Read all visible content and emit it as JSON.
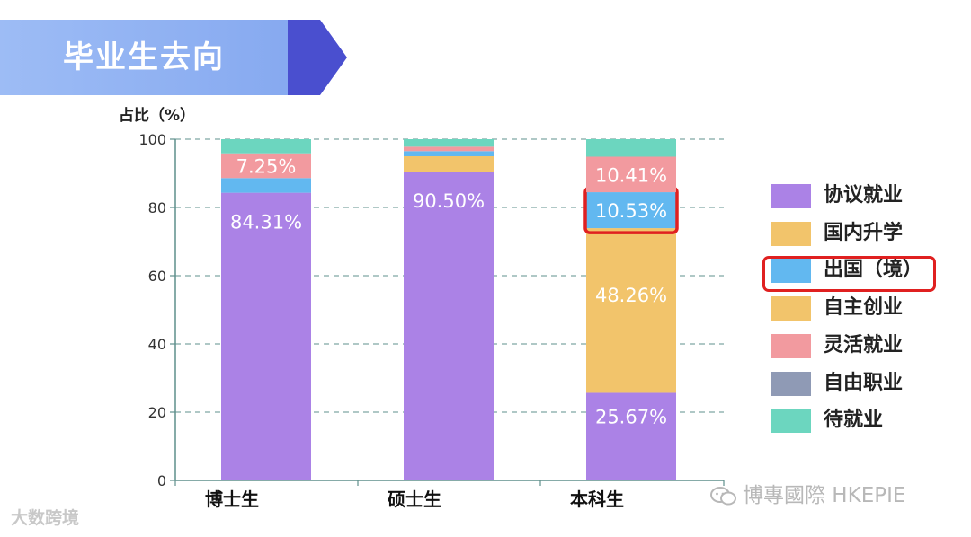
{
  "header": {
    "title": "毕业生去向"
  },
  "colors": {
    "banner": "#8fb0f2",
    "banner_arrow": "#4a4fcf",
    "highlight": "#e02020"
  },
  "chart_data": {
    "type": "bar",
    "stacked": true,
    "ylabel": "占比（%）",
    "ylim": [
      0,
      100
    ],
    "yticks": [
      "0",
      "20",
      "40",
      "60",
      "80",
      "100"
    ],
    "categories": [
      "博士生",
      "硕士生",
      "本科生"
    ],
    "grid": "horizontal-dashed",
    "legend_position": "right",
    "series": [
      {
        "name": "协议就业",
        "color": "#ab82e6",
        "values": [
          84.31,
          90.5,
          25.67
        ],
        "labels": [
          "84.31%",
          "90.50%",
          "25.67%"
        ]
      },
      {
        "name": "国内升学",
        "color": "#f2c46b",
        "values": [
          0,
          4.5,
          48.26
        ],
        "labels": [
          "",
          "",
          "48.26%"
        ]
      },
      {
        "name": "出国（境）",
        "color": "#62b8f0",
        "values": [
          4.3,
          1.5,
          10.53
        ],
        "labels": [
          "",
          "",
          "10.53%"
        ]
      },
      {
        "name": "自主创业",
        "color": "#f2c46b",
        "values": [
          0,
          0,
          0
        ],
        "labels": [
          "",
          "",
          ""
        ]
      },
      {
        "name": "灵活就业",
        "color": "#f29a9f",
        "values": [
          7.25,
          1.3,
          10.41
        ],
        "labels": [
          "7.25%",
          "",
          "10.41%"
        ]
      },
      {
        "name": "自由职业",
        "color": "#8f9ab5",
        "values": [
          0,
          0,
          0
        ],
        "labels": [
          "",
          "",
          ""
        ]
      },
      {
        "name": "待就业",
        "color": "#6cd6bf",
        "values": [
          4.14,
          2.2,
          5.13
        ],
        "labels": [
          "",
          "",
          ""
        ]
      }
    ],
    "highlighted": {
      "category": "本科生",
      "series": "出国（境）"
    }
  },
  "watermarks": {
    "left": "大数跨境",
    "right": "博專國際 HKEPIE"
  }
}
